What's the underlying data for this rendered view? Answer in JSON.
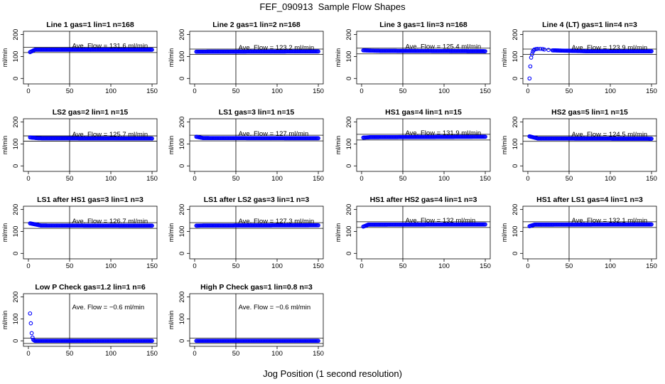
{
  "figure": {
    "title": "FEF_090913  Sample Flow Shapes",
    "xlabel": "Jog Position (1 second resolution)",
    "point_color": "#0000ff"
  },
  "chart_data": [
    {
      "type": "scatter",
      "title": "Line 1 gas=1 lin=1 n=168",
      "ylabel": "ml/min",
      "xlim": [
        0,
        150
      ],
      "ylim": [
        0,
        200
      ],
      "xticks": [
        0,
        50,
        100,
        150
      ],
      "yticks": [
        0,
        100,
        200
      ],
      "vline": 50,
      "band": [
        118,
        142
      ],
      "annotation": "Ave. Flow =  131.6  ml/min",
      "series": {
        "start": 120,
        "settle": 131,
        "settle_x": 8,
        "end": 131
      }
    },
    {
      "type": "scatter",
      "title": "Line 2 gas=1 lin=2 n=168",
      "ylabel": "ml/min",
      "xlim": [
        0,
        150
      ],
      "ylim": [
        0,
        200
      ],
      "xticks": [
        0,
        50,
        100,
        150
      ],
      "yticks": [
        0,
        100,
        200
      ],
      "vline": 50,
      "band": [
        110,
        134
      ],
      "annotation": "Ave. Flow =  123.2  ml/min",
      "series": {
        "start": 122,
        "settle": 122,
        "settle_x": 3,
        "end": 123
      }
    },
    {
      "type": "scatter",
      "title": "Line 3 gas=1 lin=3 n=168",
      "ylabel": "ml/min",
      "xlim": [
        0,
        150
      ],
      "ylim": [
        0,
        200
      ],
      "xticks": [
        0,
        50,
        100,
        150
      ],
      "yticks": [
        0,
        100,
        200
      ],
      "vline": 50,
      "band": [
        112,
        138
      ],
      "annotation": "Ave. Flow =  125.4  ml/min",
      "series": {
        "start": 128,
        "settle": 126,
        "settle_x": 20,
        "end": 124
      }
    },
    {
      "type": "scatter",
      "title": "Line 4 (LT) gas=1 lin=4 n=3",
      "ylabel": "ml/min",
      "xlim": [
        0,
        150
      ],
      "ylim": [
        0,
        200
      ],
      "xticks": [
        0,
        50,
        100,
        150
      ],
      "yticks": [
        0,
        100,
        200
      ],
      "vline": 50,
      "band": [
        110,
        134
      ],
      "annotation": "Ave. Flow =  123.9  ml/min",
      "series": {
        "early": [
          [
            2,
            0
          ],
          [
            3,
            55
          ],
          [
            4,
            95
          ],
          [
            5,
            110
          ],
          [
            6,
            122
          ],
          [
            7,
            128
          ],
          [
            8,
            132
          ],
          [
            10,
            134
          ],
          [
            12,
            135
          ],
          [
            15,
            135
          ],
          [
            18,
            134
          ],
          [
            20,
            132
          ],
          [
            25,
            130
          ],
          [
            30,
            128
          ]
        ],
        "end": 124
      }
    },
    {
      "type": "scatter",
      "title": "LS2 gas=2 lin=1 n=15",
      "ylabel": "ml/min",
      "xlim": [
        0,
        150
      ],
      "ylim": [
        0,
        200
      ],
      "xticks": [
        0,
        50,
        100,
        150
      ],
      "yticks": [
        0,
        100,
        200
      ],
      "vline": 50,
      "band": [
        113,
        137
      ],
      "annotation": "Ave. Flow =  125.7  ml/min",
      "series": {
        "start": 130,
        "settle": 126,
        "settle_x": 12,
        "end": 125
      }
    },
    {
      "type": "scatter",
      "title": "LS1 gas=3 lin=1 n=15",
      "ylabel": "ml/min",
      "xlim": [
        0,
        150
      ],
      "ylim": [
        0,
        200
      ],
      "xticks": [
        0,
        50,
        100,
        150
      ],
      "yticks": [
        0,
        100,
        200
      ],
      "vline": 50,
      "band": [
        114,
        140
      ],
      "annotation": "Ave. Flow =  127  ml/min",
      "series": {
        "start": 133,
        "settle": 127,
        "settle_x": 10,
        "end": 126
      }
    },
    {
      "type": "scatter",
      "title": "HS1 gas=4 lin=1 n=15",
      "ylabel": "ml/min",
      "xlim": [
        0,
        150
      ],
      "ylim": [
        0,
        200
      ],
      "xticks": [
        0,
        50,
        100,
        150
      ],
      "yticks": [
        0,
        100,
        200
      ],
      "vline": 50,
      "band": [
        118,
        144
      ],
      "annotation": "Ave. Flow =  131.9  ml/min",
      "series": {
        "start": 129,
        "settle": 131,
        "settle_x": 10,
        "end": 133
      }
    },
    {
      "type": "scatter",
      "title": "HS2 gas=5 lin=1 n=15",
      "ylabel": "ml/min",
      "xlim": [
        0,
        150
      ],
      "ylim": [
        0,
        200
      ],
      "xticks": [
        0,
        50,
        100,
        150
      ],
      "yticks": [
        0,
        100,
        200
      ],
      "vline": 50,
      "band": [
        112,
        137
      ],
      "annotation": "Ave. Flow =  124.5  ml/min",
      "series": {
        "start": 135,
        "settle": 125,
        "settle_x": 12,
        "end": 124
      }
    },
    {
      "type": "scatter",
      "title": "LS1 after HS1 gas=3 lin=1 n=3",
      "ylabel": "ml/min",
      "xlim": [
        0,
        150
      ],
      "ylim": [
        0,
        200
      ],
      "xticks": [
        0,
        50,
        100,
        150
      ],
      "yticks": [
        0,
        100,
        200
      ],
      "vline": 50,
      "band": [
        114,
        140
      ],
      "annotation": "Ave. Flow =  126.7  ml/min",
      "series": {
        "start": 137,
        "settle": 127,
        "settle_x": 15,
        "end": 126
      }
    },
    {
      "type": "scatter",
      "title": "LS1 after LS2 gas=3 lin=1 n=3",
      "ylabel": "ml/min",
      "xlim": [
        0,
        150
      ],
      "ylim": [
        0,
        200
      ],
      "xticks": [
        0,
        50,
        100,
        150
      ],
      "yticks": [
        0,
        100,
        200
      ],
      "vline": 50,
      "band": [
        114,
        140
      ],
      "annotation": "Ave. Flow =  127.3  ml/min",
      "series": {
        "start": 126,
        "settle": 127,
        "settle_x": 10,
        "end": 128
      }
    },
    {
      "type": "scatter",
      "title": "HS1 after HS2 gas=4 lin=1 n=3",
      "ylabel": "ml/min",
      "xlim": [
        0,
        150
      ],
      "ylim": [
        0,
        200
      ],
      "xticks": [
        0,
        50,
        100,
        150
      ],
      "yticks": [
        0,
        100,
        200
      ],
      "vline": 50,
      "band": [
        118,
        144
      ],
      "annotation": "Ave. Flow =  132  ml/min",
      "series": {
        "start": 122,
        "settle": 131,
        "settle_x": 8,
        "end": 132
      }
    },
    {
      "type": "scatter",
      "title": "HS1 after LS1 gas=4 lin=1 n=3",
      "ylabel": "ml/min",
      "xlim": [
        0,
        150
      ],
      "ylim": [
        0,
        200
      ],
      "xticks": [
        0,
        50,
        100,
        150
      ],
      "yticks": [
        0,
        100,
        200
      ],
      "vline": 50,
      "band": [
        118,
        144
      ],
      "annotation": "Ave. Flow =  132.1  ml/min",
      "series": {
        "start": 124,
        "settle": 131,
        "settle_x": 8,
        "end": 132
      }
    },
    {
      "type": "scatter",
      "title": "Low P Check gas=1.2 lin=1 n=6",
      "ylabel": "ml/min",
      "xlim": [
        0,
        150
      ],
      "ylim": [
        0,
        200
      ],
      "xticks": [
        0,
        50,
        100,
        150
      ],
      "yticks": [
        0,
        100,
        200
      ],
      "vline": 50,
      "band": [
        -12,
        12
      ],
      "annotation": "Ave. Flow =  −0.6  ml/min",
      "series": {
        "early": [
          [
            2,
            125
          ],
          [
            3,
            80
          ],
          [
            4,
            35
          ],
          [
            5,
            15
          ],
          [
            6,
            5
          ],
          [
            7,
            2
          ],
          [
            8,
            0
          ]
        ],
        "end": 0
      }
    },
    {
      "type": "scatter",
      "title": "High P Check gas=1 lin=0.8 n=3",
      "ylabel": "ml/min",
      "xlim": [
        0,
        150
      ],
      "ylim": [
        0,
        200
      ],
      "xticks": [
        0,
        50,
        100,
        150
      ],
      "yticks": [
        0,
        100,
        200
      ],
      "vline": 50,
      "band": [
        -12,
        12
      ],
      "annotation": "Ave. Flow =  −0.6  ml/min",
      "series": {
        "start": 0,
        "settle": 0,
        "settle_x": 2,
        "end": 0
      }
    }
  ]
}
